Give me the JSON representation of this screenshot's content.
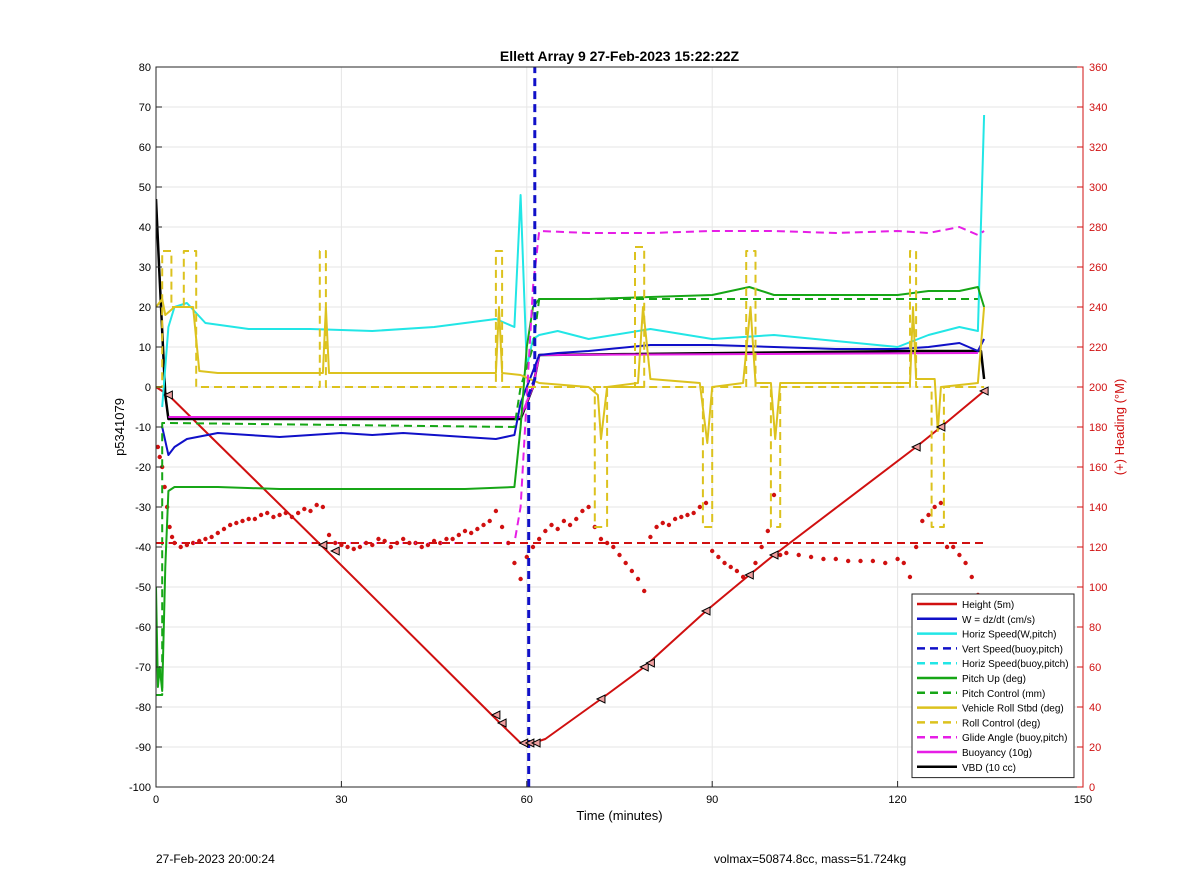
{
  "chart_data": {
    "type": "line",
    "title": "Ellett Array 9 27-Feb-2023 15:22:22Z",
    "xlabel": "Time (minutes)",
    "ylabel_left": "p5341079",
    "ylabel_right": "(+) Heading (°M)",
    "xlim": [
      0,
      150
    ],
    "ylim_left": [
      -100,
      80
    ],
    "ylim_right": [
      0,
      360
    ],
    "x_ticks": [
      0,
      30,
      60,
      90,
      120,
      150
    ],
    "y_ticks_left": [
      -100,
      -90,
      -80,
      -70,
      -60,
      -50,
      -40,
      -30,
      -20,
      -10,
      0,
      10,
      20,
      30,
      40,
      50,
      60,
      70,
      80
    ],
    "y_ticks_right": [
      0,
      20,
      40,
      60,
      80,
      100,
      120,
      140,
      160,
      180,
      200,
      220,
      240,
      260,
      280,
      300,
      320,
      340,
      360
    ],
    "grid": true,
    "legend_position": "bottom-right",
    "colors": {
      "red": "#d01010",
      "blue": "#1010c8",
      "cyan": "#22e6e6",
      "green": "#16a616",
      "yellow": "#dcc21e",
      "magenta": "#e61ee6",
      "black": "#000000",
      "right_axis": "#d01010"
    },
    "legend": [
      {
        "label": "Height (5m)",
        "color": "#d01010",
        "dash": false
      },
      {
        "label": "W = dz/dt (cm/s)",
        "color": "#1010c8",
        "dash": false
      },
      {
        "label": "Horiz Speed(W,pitch)",
        "color": "#22e6e6",
        "dash": false
      },
      {
        "label": "Vert Speed(buoy,pitch)",
        "color": "#1010c8",
        "dash": true
      },
      {
        "label": "Horiz Speed(buoy,pitch)",
        "color": "#22e6e6",
        "dash": true
      },
      {
        "label": "Pitch Up (deg)",
        "color": "#16a616",
        "dash": false
      },
      {
        "label": "Pitch Control (mm)",
        "color": "#16a616",
        "dash": true
      },
      {
        "label": "Vehicle Roll Stbd (deg)",
        "color": "#dcc21e",
        "dash": false
      },
      {
        "label": "Roll Control (deg)",
        "color": "#dcc21e",
        "dash": true
      },
      {
        "label": "Glide Angle (buoy,pitch)",
        "color": "#e61ee6",
        "dash": true
      },
      {
        "label": "Buoyancy (10g)",
        "color": "#e61ee6",
        "dash": false
      },
      {
        "label": "VBD (10 cc)",
        "color": "#000000",
        "dash": false
      }
    ],
    "series": [
      {
        "key": "height",
        "axis": "left",
        "color": "#d01010",
        "dash": false,
        "width": 2,
        "x": [
          0,
          2,
          27,
          55,
          59,
          61,
          63,
          72,
          79,
          89,
          96,
          100,
          123,
          127,
          134
        ],
        "y": [
          0,
          -2,
          -40,
          -83,
          -89,
          -89,
          -88,
          -78,
          -70,
          -56,
          -47,
          -42,
          -15,
          -10,
          -1
        ]
      },
      {
        "key": "vbd",
        "axis": "left",
        "color": "#000000",
        "dash": false,
        "width": 2.5,
        "x": [
          0,
          0.5,
          1.5,
          2,
          59,
          61,
          62,
          123,
          133.5,
          134
        ],
        "y": [
          47,
          30,
          -2,
          -8,
          -8,
          0,
          8,
          9,
          9,
          2
        ]
      },
      {
        "key": "buoyancy",
        "axis": "left",
        "color": "#e61ee6",
        "dash": false,
        "width": 2,
        "x": [
          2,
          59,
          61,
          62,
          133
        ],
        "y": [
          -7.5,
          -7.5,
          0,
          8,
          8.5
        ]
      },
      {
        "key": "w",
        "axis": "left",
        "color": "#1010c8",
        "dash": false,
        "width": 2,
        "x": [
          1,
          2,
          3,
          5,
          10,
          15,
          20,
          25,
          30,
          35,
          40,
          45,
          50,
          55,
          58,
          59,
          62,
          65,
          70,
          80,
          90,
          100,
          110,
          120,
          125,
          130,
          133,
          134
        ],
        "y": [
          -10,
          -17,
          -15,
          -13,
          -11.5,
          -12,
          -12.5,
          -12,
          -11.5,
          -12,
          -11.5,
          -12,
          -12.5,
          -13,
          -12,
          -4,
          8,
          8.5,
          9,
          10.5,
          10.5,
          10,
          9.5,
          9.5,
          10,
          11,
          9,
          12
        ]
      },
      {
        "key": "horiz",
        "axis": "left",
        "color": "#22e6e6",
        "dash": false,
        "width": 2,
        "x": [
          1,
          2,
          3,
          5,
          8,
          15,
          25,
          35,
          45,
          55,
          58,
          59,
          60,
          61,
          62,
          65,
          70,
          80,
          90,
          100,
          110,
          120,
          125,
          130,
          133,
          134
        ],
        "y": [
          -5,
          15,
          20,
          21,
          16,
          14.5,
          14.5,
          14,
          15,
          17,
          15,
          48,
          5,
          12,
          13,
          14,
          12,
          14.5,
          12,
          13,
          11.5,
          10,
          13,
          15,
          14,
          68
        ]
      },
      {
        "key": "pitch_up",
        "axis": "left",
        "color": "#16a616",
        "dash": false,
        "width": 2,
        "x": [
          0,
          0.3,
          0.6,
          1,
          1.5,
          2,
          3,
          10,
          20,
          30,
          40,
          50,
          58,
          59,
          60,
          61,
          62,
          65,
          70,
          80,
          90,
          96,
          100,
          110,
          120,
          125,
          130,
          133,
          134
        ],
        "y": [
          -50,
          -75,
          -70,
          -76,
          -45,
          -26,
          -25,
          -25,
          -25.5,
          -25.5,
          -25.5,
          -25.5,
          -25,
          -10,
          10,
          20,
          22,
          22,
          22,
          22.5,
          23,
          25,
          23,
          23,
          23,
          24,
          24,
          25,
          20
        ]
      },
      {
        "key": "pitch_ctrl",
        "axis": "left",
        "color": "#16a616",
        "dash": true,
        "width": 2,
        "x": [
          0,
          1,
          1,
          2,
          58,
          59,
          61,
          62,
          133
        ],
        "y": [
          -77,
          -77,
          -9,
          -9,
          -10,
          0,
          10,
          22,
          22
        ]
      },
      {
        "key": "roll",
        "axis": "left",
        "color": "#dcc21e",
        "dash": false,
        "width": 2,
        "x": [
          0,
          1,
          1.5,
          3,
          6,
          7,
          10,
          27,
          27.5,
          28,
          30,
          55,
          55.5,
          56,
          59,
          62,
          70,
          71.5,
          72,
          73,
          78,
          78.8,
          80,
          88,
          89.2,
          90,
          95,
          96.2,
          97,
          99.5,
          100.2,
          101,
          122,
          122.5,
          123,
          126,
          126.5,
          127,
          133,
          134
        ],
        "y": [
          20,
          22,
          18,
          20,
          20,
          4,
          3.5,
          3.5,
          20,
          3.5,
          3.5,
          3.5,
          20,
          3.5,
          3,
          1,
          0,
          -2,
          -13,
          0,
          1,
          20,
          2,
          1,
          -14,
          0,
          1,
          20,
          1,
          1,
          -13,
          1,
          1,
          20,
          2,
          2,
          -11,
          0,
          1,
          20
        ]
      },
      {
        "key": "roll_ctrl",
        "axis": "left",
        "color": "#dcc21e",
        "dash": true,
        "width": 2,
        "x": [
          0,
          1,
          1,
          2.5,
          2.5,
          4.5,
          4.5,
          6.5,
          6.5,
          26.5,
          26.5,
          27.5,
          27.5,
          55,
          55,
          56,
          56,
          62,
          77.5,
          77.5,
          79,
          79,
          71,
          71,
          73,
          73,
          88.5,
          88.5,
          90,
          90,
          95.5,
          95.5,
          97,
          97,
          99.5,
          99.5,
          101,
          101,
          122,
          122,
          123,
          123,
          125.5,
          125.5,
          127.5,
          127.5,
          134
        ],
        "y": [
          0,
          0,
          34,
          34,
          20,
          20,
          34,
          34,
          0,
          0,
          34,
          34,
          0,
          0,
          34,
          34,
          0,
          0,
          0,
          35,
          35,
          0,
          0,
          -35,
          -35,
          0,
          0,
          -35,
          -35,
          0,
          0,
          34,
          34,
          0,
          0,
          -35,
          -35,
          0,
          0,
          34,
          34,
          0,
          0,
          -35,
          -35,
          0,
          0
        ]
      },
      {
        "key": "glide",
        "axis": "left",
        "color": "#e61ee6",
        "dash": true,
        "width": 2,
        "x": [
          2,
          20,
          40,
          58,
          59,
          61,
          62,
          70,
          80,
          90,
          100,
          110,
          120,
          125,
          130,
          133,
          134
        ],
        "y": [
          -39,
          -39,
          -39,
          -39,
          -30,
          25,
          39,
          38.5,
          38.5,
          39,
          39,
          38.5,
          39,
          38.5,
          40,
          38,
          39
        ]
      },
      {
        "key": "vert_speed",
        "axis": "left",
        "color": "#1010c8",
        "dash": true,
        "width": 3,
        "x": [
          60.3,
          60.3,
          60.8,
          61.3,
          61.3
        ],
        "y": [
          -100,
          -2,
          0,
          2,
          80
        ]
      },
      {
        "key": "heading_target",
        "axis": "right",
        "color": "#d01010",
        "dash": true,
        "width": 2,
        "x": [
          0,
          134
        ],
        "y": [
          122,
          122
        ]
      }
    ],
    "heading_points": {
      "axis": "right",
      "color": "#d01010",
      "x": [
        0.3,
        0.6,
        1,
        1.4,
        1.8,
        2.2,
        2.6,
        3,
        4,
        5,
        6,
        7,
        8,
        9,
        10,
        11,
        12,
        13,
        14,
        15,
        16,
        17,
        18,
        19,
        20,
        21,
        22,
        23,
        24,
        25,
        26,
        27,
        28,
        29,
        30,
        31,
        32,
        33,
        34,
        35,
        36,
        37,
        38,
        39,
        40,
        41,
        42,
        43,
        44,
        45,
        46,
        47,
        48,
        49,
        50,
        51,
        52,
        53,
        54,
        55,
        56,
        57,
        58,
        59,
        60,
        61,
        62,
        63,
        64,
        65,
        66,
        67,
        68,
        69,
        70,
        71,
        72,
        73,
        74,
        75,
        76,
        77,
        78,
        79,
        80,
        81,
        82,
        83,
        84,
        85,
        86,
        87,
        88,
        89,
        90,
        91,
        92,
        93,
        94,
        95,
        96,
        97,
        98,
        99,
        100,
        101,
        102,
        104,
        106,
        108,
        110,
        112,
        114,
        116,
        118,
        120,
        121,
        122,
        123,
        124,
        125,
        126,
        127,
        128,
        129,
        130,
        131,
        132,
        133
      ],
      "y": [
        170,
        165,
        160,
        150,
        140,
        130,
        125,
        122,
        120,
        121,
        122,
        123,
        124,
        125,
        127,
        129,
        131,
        132,
        133,
        134,
        134,
        136,
        137,
        135,
        136,
        137,
        135,
        137,
        139,
        138,
        141,
        140,
        126,
        122,
        121,
        120,
        119,
        120,
        122,
        121,
        124,
        123,
        120,
        122,
        124,
        122,
        122,
        120,
        121,
        123,
        122,
        124,
        124,
        126,
        128,
        127,
        129,
        131,
        133,
        138,
        130,
        122,
        112,
        104,
        115,
        120,
        124,
        128,
        131,
        129,
        133,
        131,
        134,
        138,
        140,
        130,
        124,
        122,
        120,
        116,
        112,
        108,
        104,
        98,
        125,
        130,
        132,
        131,
        134,
        135,
        136,
        137,
        140,
        142,
        118,
        115,
        112,
        110,
        108,
        105,
        106,
        112,
        120,
        128,
        146,
        116,
        117,
        116,
        115,
        114,
        114,
        113,
        113,
        113,
        112,
        114,
        112,
        105,
        120,
        133,
        136,
        140,
        142,
        120,
        120,
        116,
        112,
        105,
        96
      ]
    },
    "height_markers": {
      "axis": "left",
      "x": [
        2,
        27,
        29,
        55,
        56,
        59.5,
        60.5,
        61.5,
        72,
        79,
        80,
        89,
        96,
        100,
        123,
        127,
        134
      ],
      "y": [
        -2,
        -39.5,
        -41,
        -82,
        -84,
        -89,
        -89,
        -89,
        -78,
        -70,
        -69,
        -56,
        -47,
        -42,
        -15,
        -10,
        -1
      ]
    }
  },
  "footer": {
    "timestamp": "27-Feb-2023 20:00:24",
    "info": "volmax=50874.8cc, mass=51.724kg"
  }
}
